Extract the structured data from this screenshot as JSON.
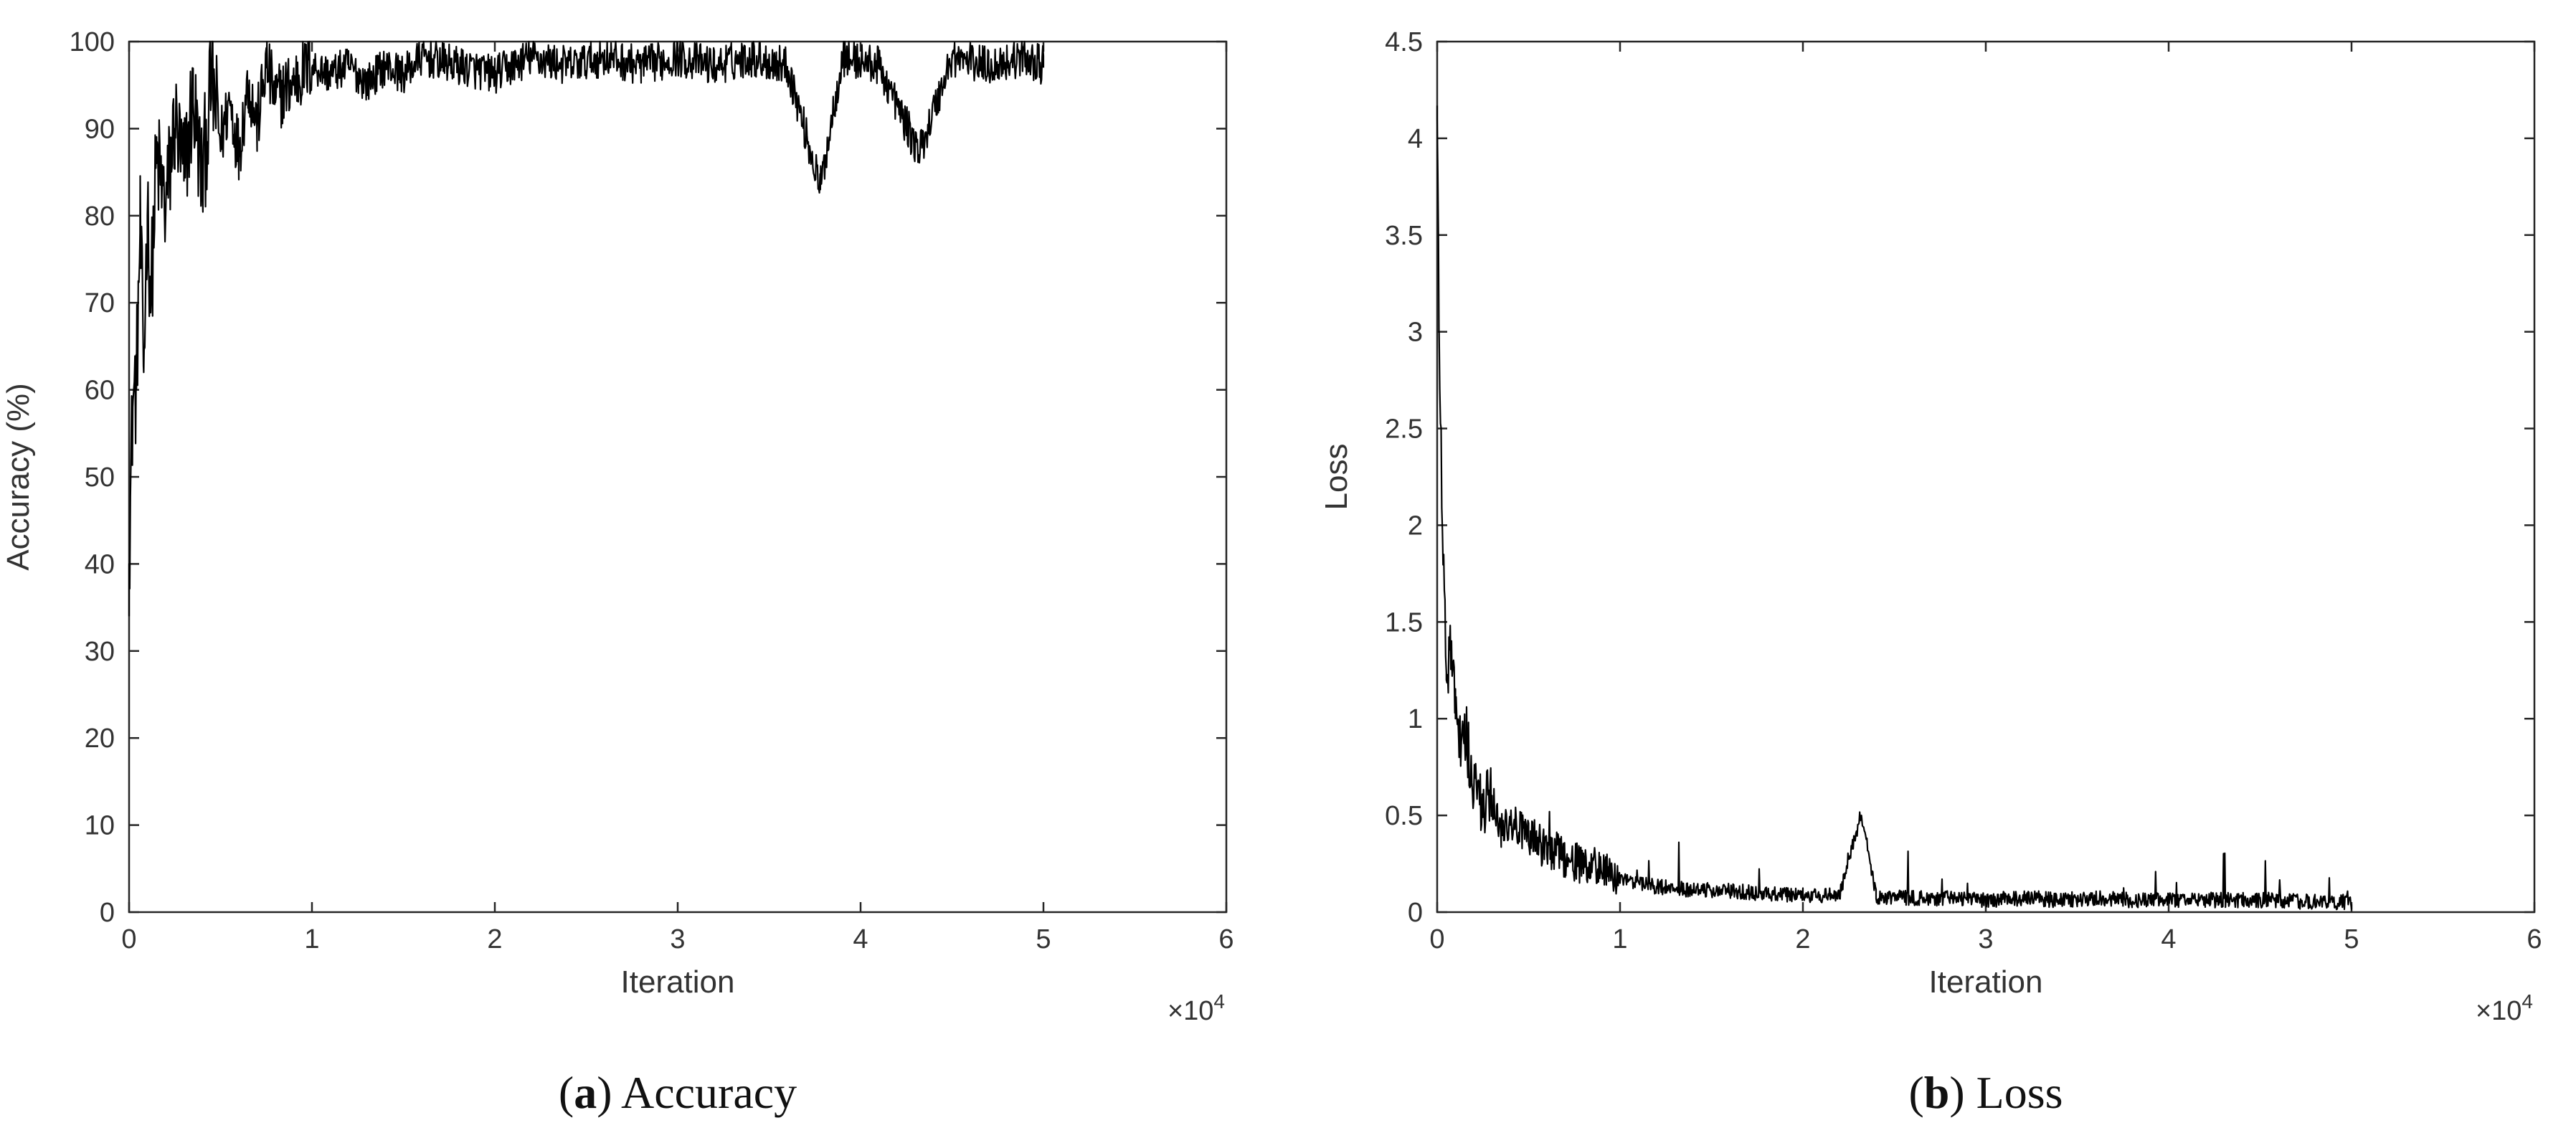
{
  "chart_data": [
    {
      "type": "line",
      "caption_letter": "a",
      "caption_text": "Accuracy",
      "xlabel": "Iteration",
      "ylabel": "Accuracy (%)",
      "x_multiplier": "×10",
      "x_multiplier_exp": "4",
      "xlim": [
        0,
        6
      ],
      "ylim": [
        0,
        100
      ],
      "xticks": [
        "0",
        "1",
        "2",
        "3",
        "4",
        "5",
        "6"
      ],
      "yticks": [
        "0",
        "10",
        "20",
        "30",
        "40",
        "50",
        "60",
        "70",
        "80",
        "90",
        "100"
      ],
      "grid": false,
      "series": [
        {
          "x": [
            0,
            0.02,
            0.04,
            0.06,
            0.08,
            0.1,
            0.12,
            0.15,
            0.2,
            0.25,
            0.3,
            0.35,
            0.4,
            0.45,
            0.5,
            0.55,
            0.6,
            0.65,
            0.7,
            0.75,
            0.8,
            0.9,
            1.0,
            1.1,
            1.2,
            1.3,
            1.4,
            1.5,
            1.6,
            1.8,
            2.0,
            2.2,
            2.4,
            2.6,
            2.8,
            3.0,
            3.2,
            3.4,
            3.6,
            3.78,
            3.9,
            4.1,
            4.32,
            4.5,
            4.7,
            4.9,
            5.0
          ],
          "y": [
            40,
            58,
            60,
            78,
            62,
            80,
            70,
            86,
            80,
            90,
            84,
            93,
            83,
            95,
            88,
            93,
            87,
            95,
            90,
            97,
            93,
            95,
            97,
            96,
            97,
            95,
            97,
            96,
            98,
            97,
            96,
            98,
            97,
            98,
            97,
            98,
            97,
            98,
            97,
            83,
            98,
            97,
            87,
            98,
            97,
            98,
            97
          ]
        }
      ]
    },
    {
      "type": "line",
      "caption_letter": "b",
      "caption_text": "Loss",
      "xlabel": "Iteration",
      "ylabel": "Loss",
      "x_multiplier": "×10",
      "x_multiplier_exp": "4",
      "xlim": [
        0,
        6
      ],
      "ylim": [
        0,
        4.5
      ],
      "xticks": [
        "0",
        "1",
        "2",
        "3",
        "4",
        "5",
        "6"
      ],
      "yticks": [
        "0",
        "0.5",
        "1",
        "1.5",
        "2",
        "2.5",
        "3",
        "3.5",
        "4",
        "4.5"
      ],
      "grid": false,
      "series": [
        {
          "x": [
            0,
            0.01,
            0.03,
            0.05,
            0.08,
            0.1,
            0.12,
            0.15,
            0.2,
            0.25,
            0.3,
            0.35,
            0.4,
            0.5,
            0.6,
            0.7,
            0.8,
            0.9,
            1.0,
            1.2,
            1.4,
            1.6,
            1.8,
            2.0,
            2.2,
            2.32,
            2.4,
            2.6,
            2.8,
            3.0,
            3.2,
            3.4,
            3.6,
            3.8,
            4.0,
            4.2,
            4.4,
            4.6,
            4.8,
            5.0
          ],
          "y": [
            4.1,
            3.0,
            1.9,
            1.2,
            1.3,
            1.0,
            0.8,
            0.9,
            0.6,
            0.5,
            0.55,
            0.4,
            0.45,
            0.35,
            0.3,
            0.25,
            0.2,
            0.2,
            0.15,
            0.12,
            0.1,
            0.1,
            0.08,
            0.08,
            0.07,
            0.5,
            0.07,
            0.06,
            0.06,
            0.05,
            0.06,
            0.05,
            0.06,
            0.05,
            0.05,
            0.05,
            0.05,
            0.05,
            0.04,
            0.04
          ]
        }
      ]
    }
  ]
}
